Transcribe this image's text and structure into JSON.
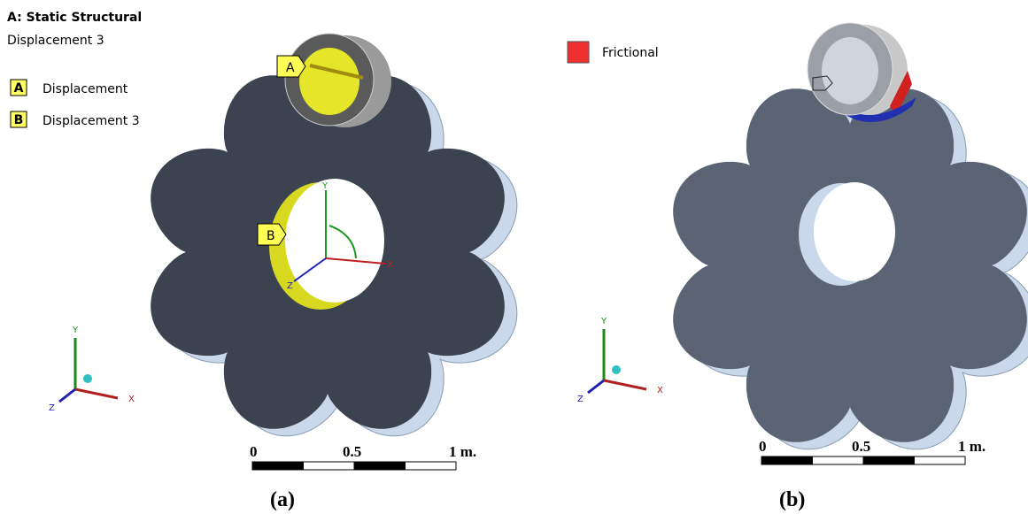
{
  "panel_a": {
    "title": "A: Static Structural",
    "subtitle": "Displacement 3",
    "legend": [
      {
        "key": "A",
        "label": "Displacement"
      },
      {
        "key": "B",
        "label": "Displacement 3"
      }
    ],
    "callouts": [
      "A",
      "B"
    ],
    "local_axes": [
      "Y",
      "X",
      "Z"
    ],
    "triad": [
      "Y",
      "X",
      "Z"
    ],
    "scale_bar": [
      "0",
      "0.5",
      "1 m."
    ],
    "caption": "(a)"
  },
  "panel_b": {
    "legend": [
      {
        "label": "Frictional"
      }
    ],
    "triad": [
      "Y",
      "X",
      "Z"
    ],
    "scale_bar": [
      "0",
      "0.5",
      "1 m."
    ],
    "caption": "(b)"
  }
}
